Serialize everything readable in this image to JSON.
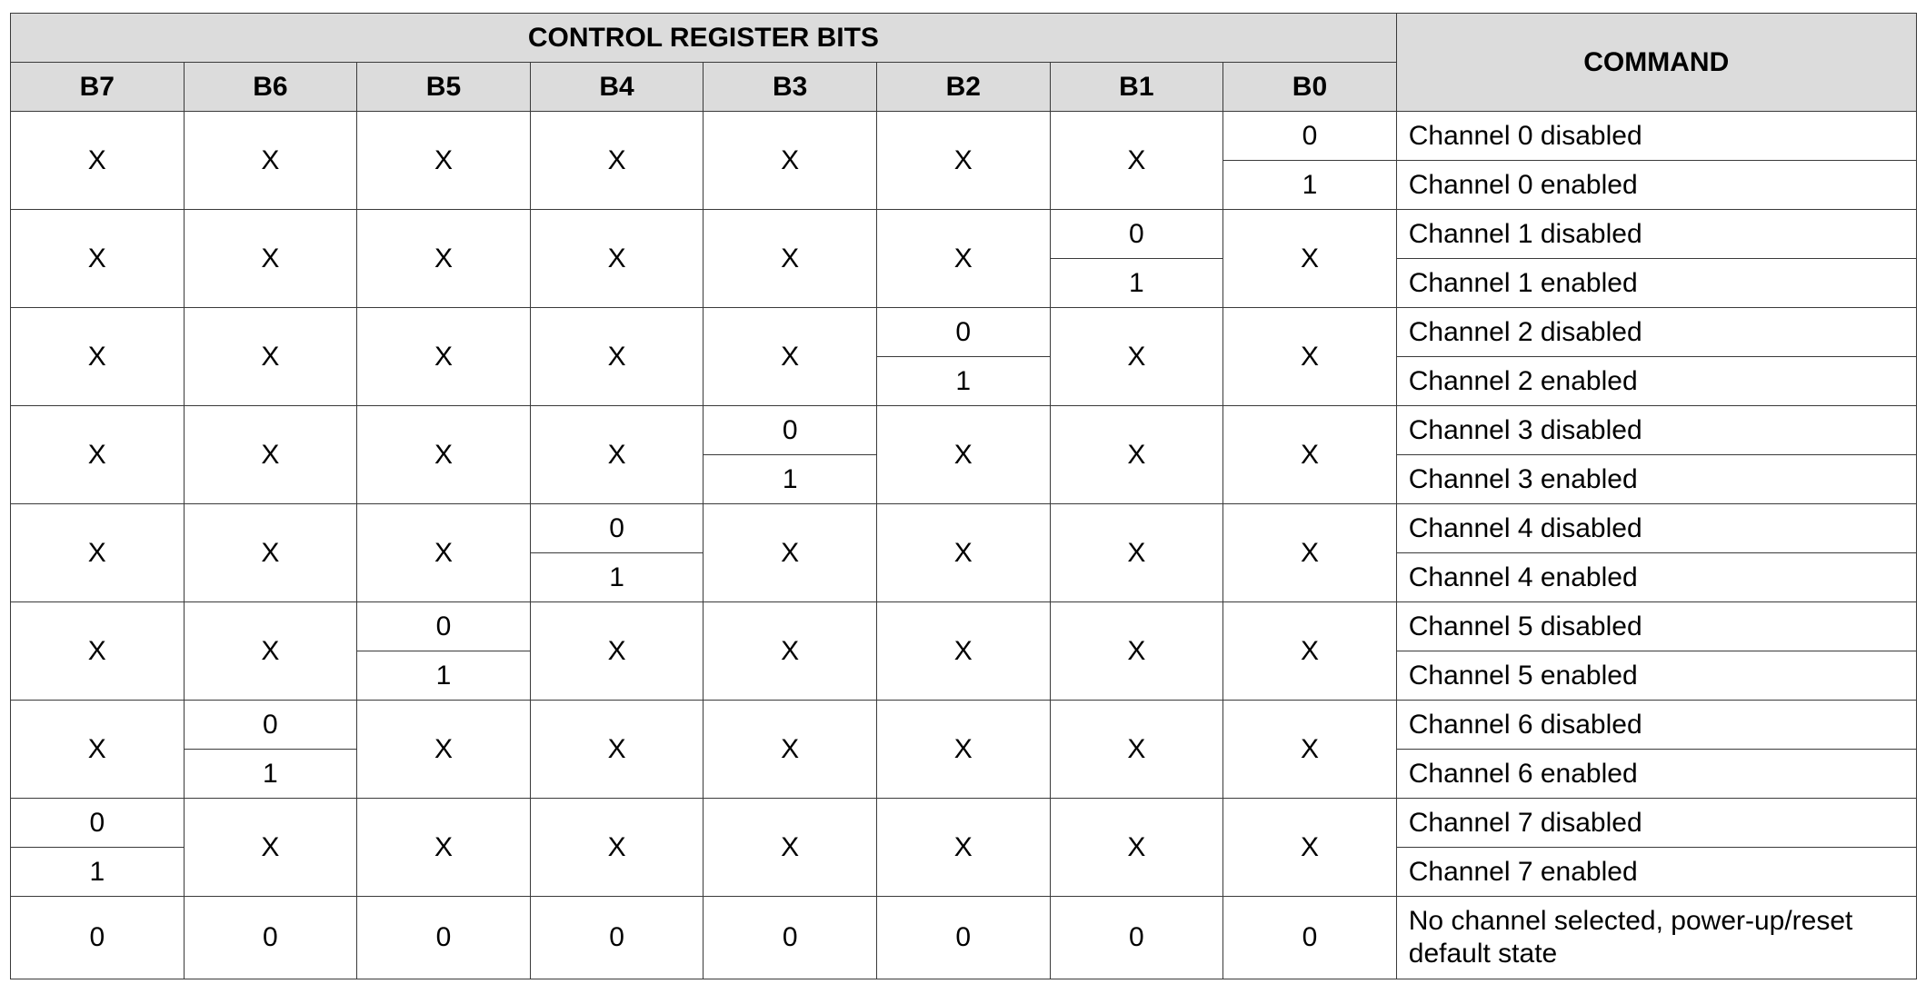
{
  "header": {
    "title": "CONTROL REGISTER BITS",
    "command": "COMMAND",
    "bits": [
      "B7",
      "B6",
      "B5",
      "B4",
      "B3",
      "B2",
      "B1",
      "B0"
    ]
  },
  "rows": [
    {
      "bits": [
        "X",
        "X",
        "X",
        "X",
        "X",
        "X",
        "X",
        [
          "0",
          "1"
        ]
      ],
      "commands": [
        "Channel 0 disabled",
        "Channel 0 enabled"
      ]
    },
    {
      "bits": [
        "X",
        "X",
        "X",
        "X",
        "X",
        "X",
        [
          "0",
          "1"
        ],
        "X"
      ],
      "commands": [
        "Channel 1 disabled",
        "Channel 1 enabled"
      ]
    },
    {
      "bits": [
        "X",
        "X",
        "X",
        "X",
        "X",
        [
          "0",
          "1"
        ],
        "X",
        "X"
      ],
      "commands": [
        "Channel 2 disabled",
        "Channel 2 enabled"
      ]
    },
    {
      "bits": [
        "X",
        "X",
        "X",
        "X",
        [
          "0",
          "1"
        ],
        "X",
        "X",
        "X"
      ],
      "commands": [
        "Channel 3 disabled",
        "Channel 3 enabled"
      ]
    },
    {
      "bits": [
        "X",
        "X",
        "X",
        [
          "0",
          "1"
        ],
        "X",
        "X",
        "X",
        "X"
      ],
      "commands": [
        "Channel 4 disabled",
        "Channel 4 enabled"
      ]
    },
    {
      "bits": [
        "X",
        "X",
        [
          "0",
          "1"
        ],
        "X",
        "X",
        "X",
        "X",
        "X"
      ],
      "commands": [
        "Channel 5 disabled",
        "Channel 5 enabled"
      ]
    },
    {
      "bits": [
        "X",
        [
          "0",
          "1"
        ],
        "X",
        "X",
        "X",
        "X",
        "X",
        "X"
      ],
      "commands": [
        "Channel 6 disabled",
        "Channel 6 enabled"
      ]
    },
    {
      "bits": [
        [
          "0",
          "1"
        ],
        "X",
        "X",
        "X",
        "X",
        "X",
        "X",
        "X"
      ],
      "commands": [
        "Channel 7 disabled",
        "Channel 7 enabled"
      ]
    }
  ],
  "default_row": {
    "bits": [
      "0",
      "0",
      "0",
      "0",
      "0",
      "0",
      "0",
      "0"
    ],
    "command": "No channel selected, power-up/reset default state"
  }
}
